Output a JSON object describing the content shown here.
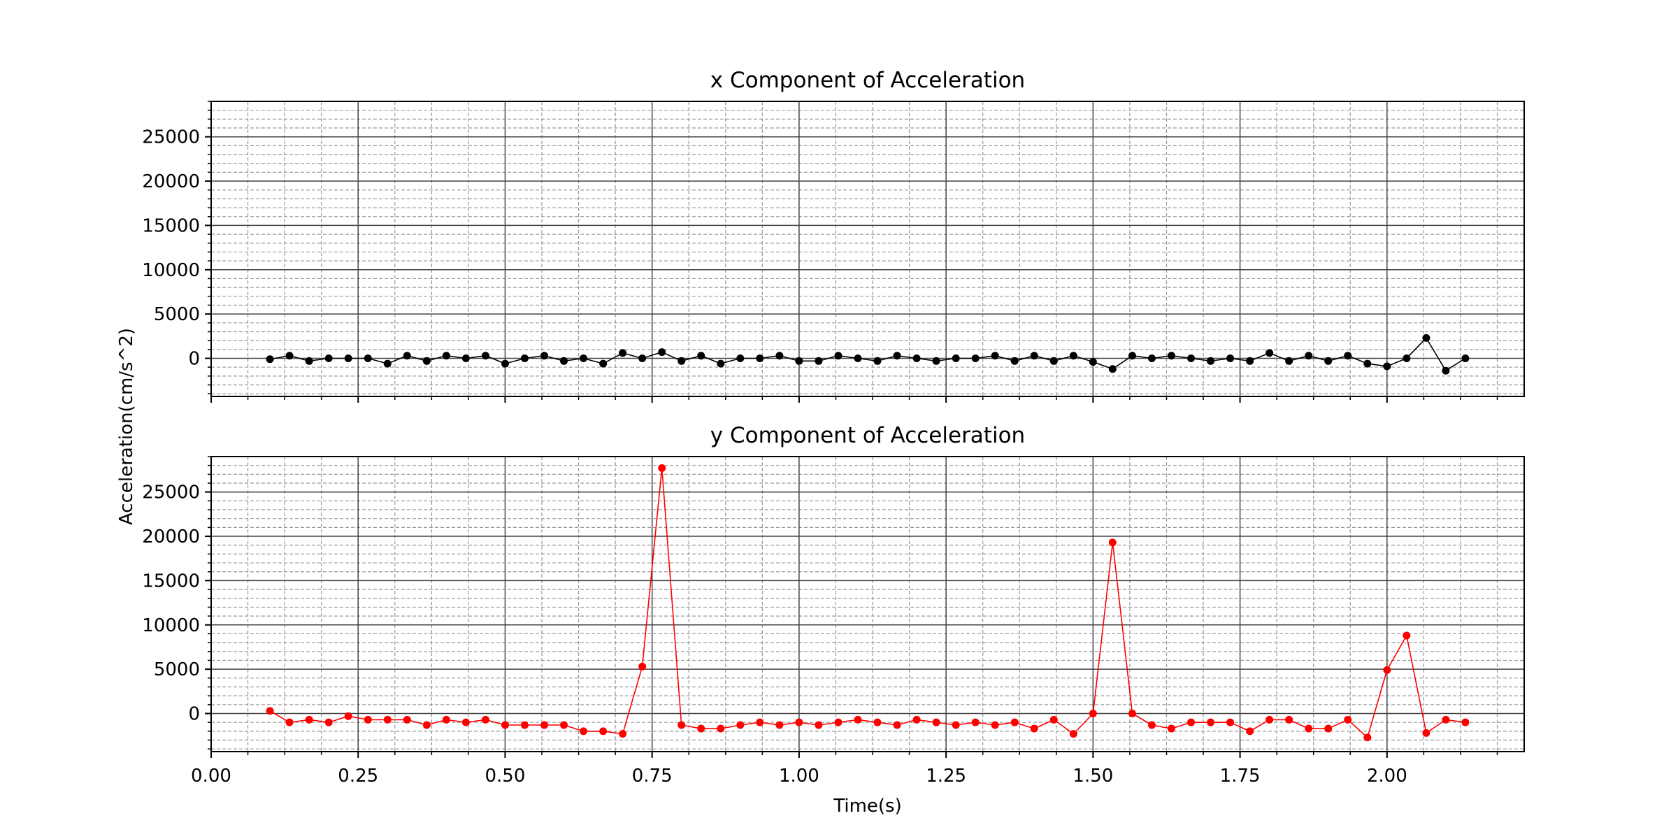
{
  "chart_data": [
    {
      "type": "line",
      "title": "x Component of Acceleration",
      "xlabel": "",
      "ylabel": "",
      "xlim": [
        0.0,
        2.2333
      ],
      "ylim": [
        -4300,
        29000
      ],
      "xticks": [
        "0.00",
        "0.25",
        "0.50",
        "0.75",
        "1.00",
        "1.25",
        "1.50",
        "1.75",
        "2.00"
      ],
      "yticks": [
        "0",
        "5000",
        "10000",
        "15000",
        "20000",
        "25000"
      ],
      "x_tick_labels_visible": false,
      "grid": true,
      "series": [
        {
          "color": "#000000",
          "marker": "circle",
          "x": [
            0.1,
            0.1333,
            0.1667,
            0.2,
            0.2333,
            0.2667,
            0.3,
            0.3333,
            0.3667,
            0.4,
            0.4333,
            0.4667,
            0.5,
            0.5333,
            0.5667,
            0.6,
            0.6333,
            0.6667,
            0.7,
            0.7333,
            0.7667,
            0.8,
            0.8333,
            0.8667,
            0.9,
            0.9333,
            0.9667,
            1.0,
            1.0333,
            1.0667,
            1.1,
            1.1333,
            1.1667,
            1.2,
            1.2333,
            1.2667,
            1.3,
            1.3333,
            1.3667,
            1.4,
            1.4333,
            1.4667,
            1.5,
            1.5333,
            1.5667,
            1.6,
            1.6333,
            1.6667,
            1.7,
            1.7333,
            1.7667,
            1.8,
            1.8333,
            1.8667,
            1.9,
            1.9333,
            1.9667,
            2.0,
            2.0333,
            2.0667,
            2.1,
            2.1333
          ],
          "y": [
            -100,
            300,
            -300,
            0,
            0,
            0,
            -600,
            300,
            -300,
            300,
            0,
            300,
            -600,
            0,
            300,
            -300,
            0,
            -600,
            600,
            0,
            700,
            -300,
            300,
            -600,
            0,
            0,
            300,
            -300,
            -300,
            300,
            0,
            -300,
            300,
            0,
            -300,
            0,
            0,
            300,
            -300,
            300,
            -300,
            300,
            -400,
            -1200,
            300,
            0,
            300,
            0,
            -300,
            0,
            -300,
            600,
            -300,
            300,
            -300,
            300,
            -600,
            -900,
            0,
            2300,
            -1400,
            0
          ]
        }
      ]
    },
    {
      "type": "line",
      "title": "y Component of Acceleration",
      "xlabel": "Time(s)",
      "ylabel": "Acceleration(cm/s^2)",
      "xlim": [
        0.0,
        2.2333
      ],
      "ylim": [
        -4300,
        29000
      ],
      "xticks": [
        "0.00",
        "0.25",
        "0.50",
        "0.75",
        "1.00",
        "1.25",
        "1.50",
        "1.75",
        "2.00"
      ],
      "yticks": [
        "0",
        "5000",
        "10000",
        "15000",
        "20000",
        "25000"
      ],
      "x_tick_labels_visible": true,
      "grid": true,
      "series": [
        {
          "color": "#ff0000",
          "marker": "circle",
          "x": [
            0.1,
            0.1333,
            0.1667,
            0.2,
            0.2333,
            0.2667,
            0.3,
            0.3333,
            0.3667,
            0.4,
            0.4333,
            0.4667,
            0.5,
            0.5333,
            0.5667,
            0.6,
            0.6333,
            0.6667,
            0.7,
            0.7333,
            0.7667,
            0.8,
            0.8333,
            0.8667,
            0.9,
            0.9333,
            0.9667,
            1.0,
            1.0333,
            1.0667,
            1.1,
            1.1333,
            1.1667,
            1.2,
            1.2333,
            1.2667,
            1.3,
            1.3333,
            1.3667,
            1.4,
            1.4333,
            1.4667,
            1.5,
            1.5333,
            1.5667,
            1.6,
            1.6333,
            1.6667,
            1.7,
            1.7333,
            1.7667,
            1.8,
            1.8333,
            1.8667,
            1.9,
            1.9333,
            1.9667,
            2.0,
            2.0333,
            2.0667,
            2.1,
            2.1333
          ],
          "y": [
            300,
            -1000,
            -700,
            -1000,
            -300,
            -700,
            -700,
            -700,
            -1300,
            -700,
            -1000,
            -700,
            -1300,
            -1300,
            -1300,
            -1300,
            -2000,
            -2000,
            -2300,
            5300,
            27700,
            -1300,
            -1700,
            -1700,
            -1300,
            -1000,
            -1300,
            -1000,
            -1300,
            -1000,
            -700,
            -1000,
            -1300,
            -700,
            -1000,
            -1300,
            -1000,
            -1300,
            -1000,
            -1700,
            -700,
            -2300,
            0,
            19300,
            0,
            -1300,
            -1700,
            -1000,
            -1000,
            -1000,
            -2000,
            -700,
            -700,
            -1700,
            -1700,
            -700,
            -2700,
            4900,
            8800,
            -2200,
            -700,
            -1000
          ]
        }
      ]
    }
  ]
}
